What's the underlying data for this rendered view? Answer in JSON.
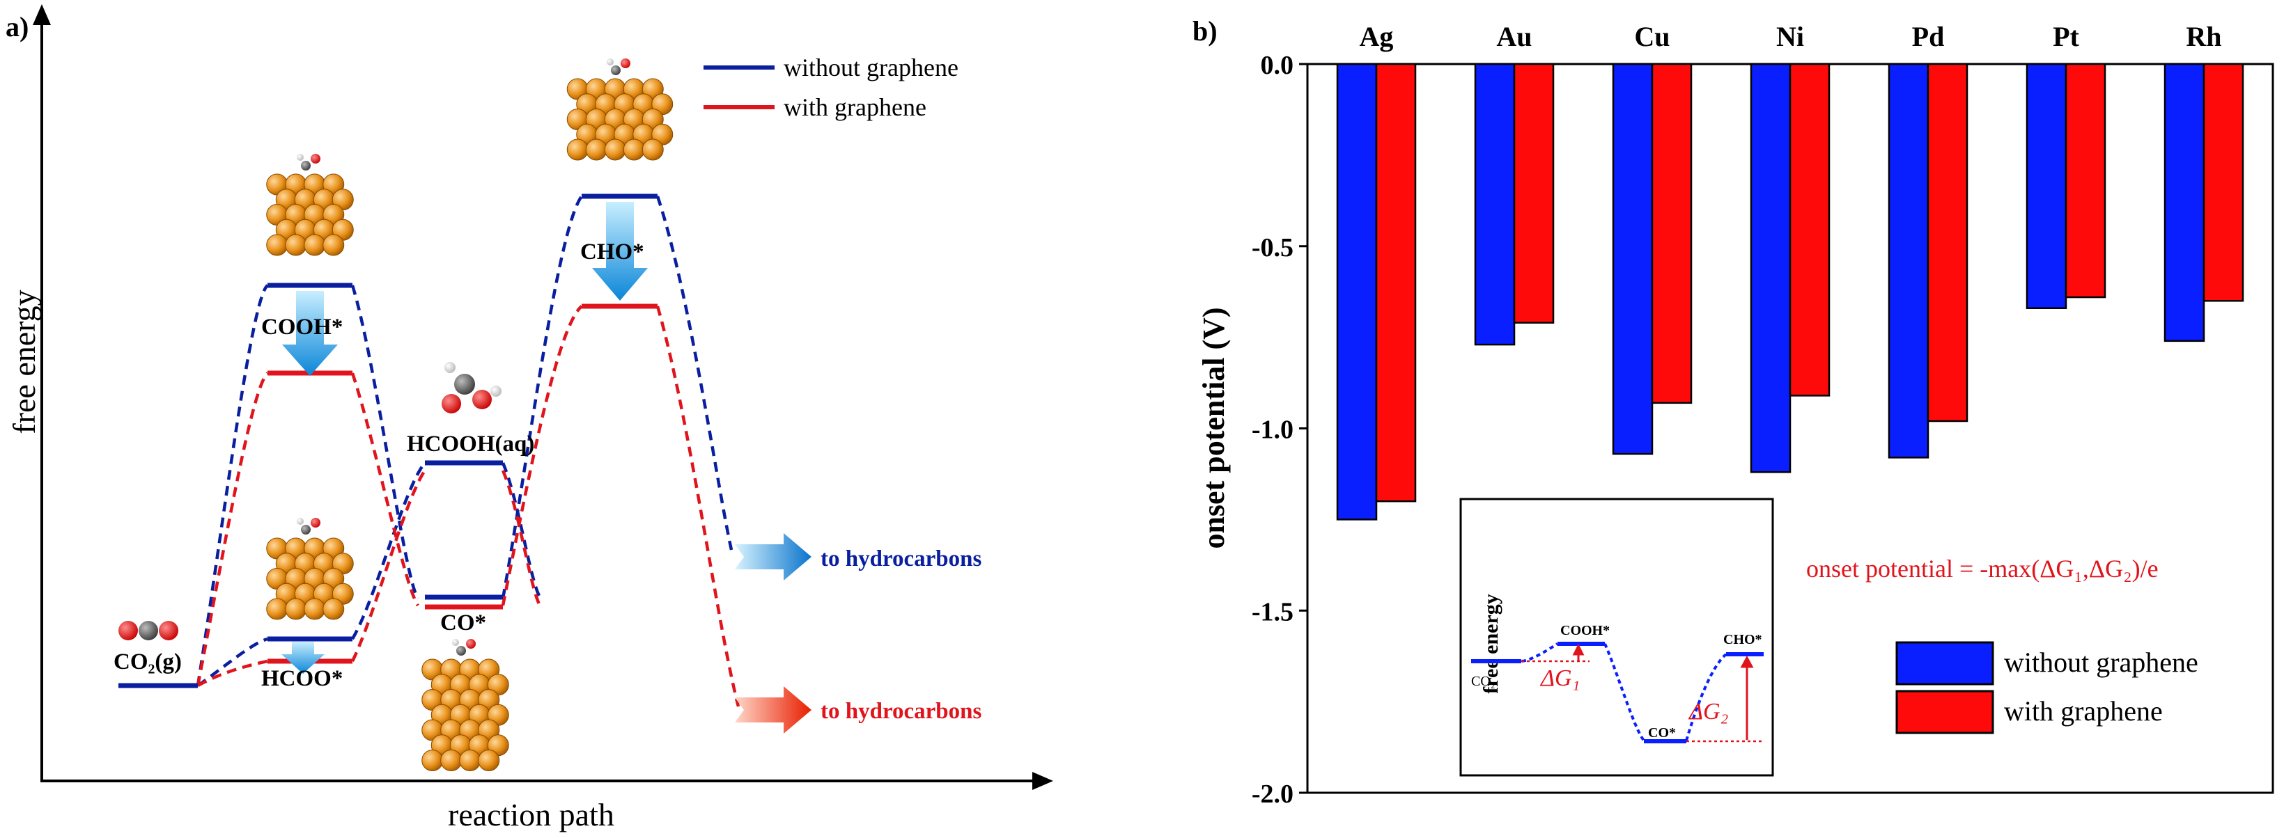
{
  "panel_a": {
    "label": "a)",
    "xlabel": "reaction path",
    "ylabel": "free energy",
    "legend": [
      {
        "name": "without graphene",
        "color": "#0a1fa0"
      },
      {
        "name": "with graphene",
        "color": "#e0141c"
      }
    ],
    "states": {
      "co2": "CO₂(g)",
      "cooh": "COOH*",
      "hcoo": "HCOO*",
      "hcooh": "HCOOH(aq)",
      "co": "CO*",
      "cho": "CHO*"
    },
    "arrow_blue": "to hydrocarbons",
    "arrow_red": "to hydrocarbons"
  },
  "chart_data": {
    "type": "bar",
    "panel_label": "b)",
    "title": "",
    "xlabel": "",
    "ylabel": "onset potential (V)",
    "ylim": [
      -2.0,
      0.0
    ],
    "yticks": [
      "0.0",
      "-0.5",
      "-1.0",
      "-1.5",
      "-2.0"
    ],
    "categories": [
      "Ag",
      "Au",
      "Cu",
      "Ni",
      "Pd",
      "Pt",
      "Rh"
    ],
    "series": [
      {
        "name": "without graphene",
        "color": "#0a1fff",
        "values": [
          -1.25,
          -0.77,
          -1.07,
          -1.12,
          -1.08,
          -0.67,
          -0.76
        ]
      },
      {
        "name": "with graphene",
        "color": "#ff0a0a",
        "values": [
          -1.2,
          -0.71,
          -0.93,
          -0.91,
          -0.98,
          -0.64,
          -0.65
        ]
      }
    ],
    "legend_position": "bottom-right",
    "annotation": "onset potential = -max(ΔG₁,ΔG₂)/e",
    "inset": {
      "ylabel": "free energy",
      "labels": {
        "co2": "CO₂",
        "cooh": "COOH*",
        "co": "CO*",
        "cho": "CHO*"
      },
      "dg1": "ΔG₁",
      "dg2": "ΔG₂"
    }
  }
}
